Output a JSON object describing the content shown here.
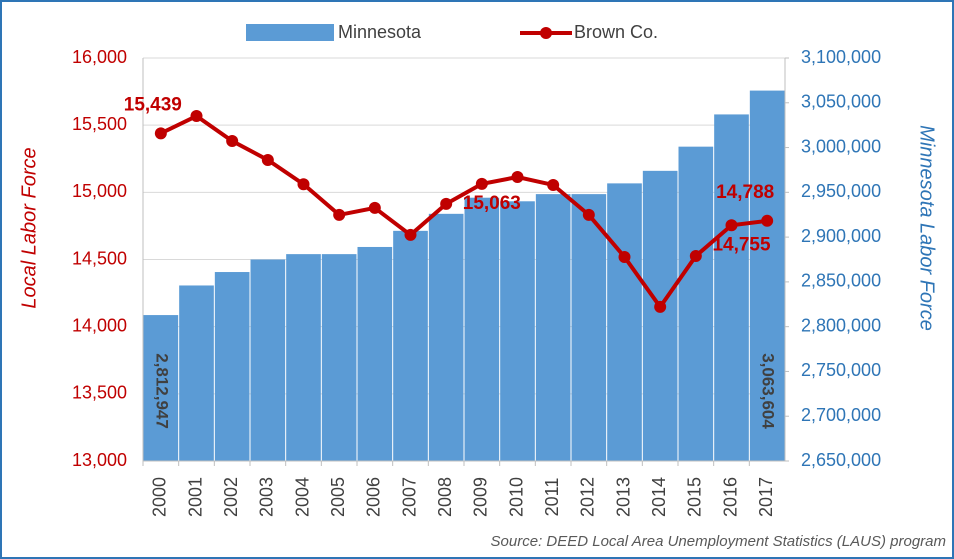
{
  "chart_data": {
    "type": "bar-line",
    "categories": [
      "2000",
      "2001",
      "2002",
      "2003",
      "2004",
      "2005",
      "2006",
      "2007",
      "2008",
      "2009",
      "2010",
      "2011",
      "2012",
      "2013",
      "2014",
      "2015",
      "2016",
      "2017"
    ],
    "series": [
      {
        "name": "Minnesota",
        "type": "bar",
        "axis": "y2",
        "color": "#5b9bd5",
        "values": [
          2812947,
          2846000,
          2861000,
          2875000,
          2881000,
          2881000,
          2889000,
          2907000,
          2926000,
          2944000,
          2940000,
          2948000,
          2948000,
          2960000,
          2974000,
          3001000,
          3037000,
          3063604
        ],
        "value_labels": [
          "2,812,947",
          null,
          null,
          null,
          null,
          null,
          null,
          null,
          null,
          null,
          null,
          null,
          null,
          null,
          null,
          null,
          null,
          "3,063,604"
        ]
      },
      {
        "name": "Brown Co.",
        "type": "line",
        "axis": "y",
        "color": "#c00000",
        "values": [
          15439,
          15568,
          15382,
          15241,
          15060,
          14832,
          14884,
          14683,
          14914,
          15063,
          15114,
          15055,
          14832,
          14519,
          14147,
          14526,
          14755,
          14788
        ],
        "value_labels": [
          "15,439",
          null,
          null,
          null,
          null,
          null,
          null,
          null,
          null,
          "15,063",
          null,
          null,
          null,
          null,
          null,
          null,
          "14,755",
          "14,788"
        ]
      }
    ],
    "ylabel": "Local Labor Force",
    "y2label": "Minnesota Labor Force",
    "ylim": [
      13000,
      16000
    ],
    "yticks": [
      {
        "value": 13000,
        "label": "13,000"
      },
      {
        "value": 13500,
        "label": "13,500"
      },
      {
        "value": 14000,
        "label": "14,000"
      },
      {
        "value": 14500,
        "label": "14,500"
      },
      {
        "value": 15000,
        "label": "15,000"
      },
      {
        "value": 15500,
        "label": "15,500"
      },
      {
        "value": 16000,
        "label": "16,000"
      }
    ],
    "y2lim": [
      2650000,
      3100000
    ],
    "y2ticks": [
      {
        "value": 2650000,
        "label": "2,650,000"
      },
      {
        "value": 2700000,
        "label": "2,700,000"
      },
      {
        "value": 2750000,
        "label": "2,750,000"
      },
      {
        "value": 2800000,
        "label": "2,800,000"
      },
      {
        "value": 2850000,
        "label": "2,850,000"
      },
      {
        "value": 2900000,
        "label": "2,900,000"
      },
      {
        "value": 2950000,
        "label": "2,950,000"
      },
      {
        "value": 3000000,
        "label": "3,000,000"
      },
      {
        "value": 3050000,
        "label": "3,050,000"
      },
      {
        "value": 3100000,
        "label": "3,100,000"
      }
    ],
    "grid": true,
    "legend": "top",
    "source": "Source: DEED Local Area Unemployment Statistics (LAUS) program"
  }
}
